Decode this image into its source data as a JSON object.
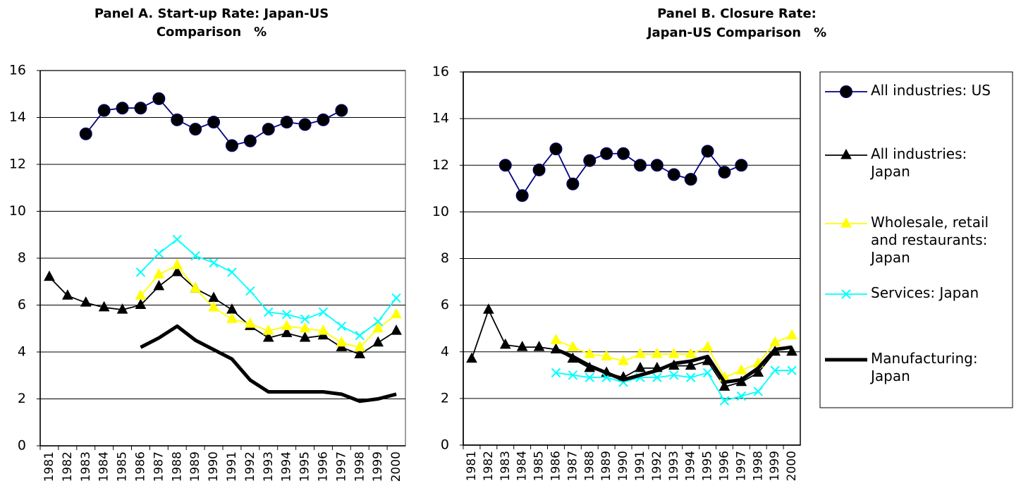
{
  "chart_data": [
    {
      "type": "line",
      "title": [
        "Panel A. Start-up Rate: Japan-US",
        "Comparison　%"
      ],
      "categories": [
        "1981",
        "1982",
        "1983",
        "1984",
        "1985",
        "1986",
        "1987",
        "1988",
        "1989",
        "1990",
        "1991",
        "1992",
        "1993",
        "1994",
        "1995",
        "1996",
        "1997",
        "1998",
        "1999",
        "2000"
      ],
      "ylim": [
        0,
        16
      ],
      "yticks": [
        0,
        2,
        4,
        6,
        8,
        10,
        12,
        14,
        16
      ],
      "grid": true,
      "series": [
        {
          "color": "#000080",
          "marker": "circle",
          "values": [
            null,
            null,
            13.3,
            14.3,
            14.4,
            14.4,
            14.8,
            13.9,
            13.5,
            13.8,
            12.8,
            13.0,
            13.5,
            13.8,
            13.7,
            13.9,
            14.3,
            null,
            null,
            null
          ]
        },
        {
          "color": "#000000",
          "marker": "triangle",
          "values": [
            7.2,
            6.4,
            6.1,
            5.9,
            5.8,
            6.0,
            6.8,
            7.4,
            6.7,
            6.3,
            5.8,
            5.1,
            4.6,
            4.8,
            4.6,
            4.7,
            4.2,
            3.9,
            4.4,
            4.9
          ]
        },
        {
          "color": "#ffff00",
          "marker": "triangle",
          "values": [
            null,
            null,
            null,
            null,
            null,
            6.4,
            7.3,
            7.7,
            6.7,
            5.9,
            5.4,
            5.2,
            4.9,
            5.1,
            5.0,
            4.9,
            4.4,
            4.2,
            5.0,
            5.6
          ]
        },
        {
          "color": "#00ffff",
          "marker": "x",
          "values": [
            null,
            null,
            null,
            null,
            null,
            7.4,
            8.2,
            8.8,
            8.1,
            7.8,
            7.4,
            6.6,
            5.7,
            5.6,
            5.4,
            5.7,
            5.1,
            4.7,
            5.3,
            6.3
          ]
        },
        {
          "color": "#000000",
          "marker": "none",
          "values": [
            null,
            null,
            null,
            null,
            null,
            4.2,
            4.6,
            5.1,
            4.5,
            4.1,
            3.7,
            2.8,
            2.3,
            2.3,
            2.3,
            2.3,
            2.2,
            1.9,
            2.0,
            2.2
          ]
        }
      ]
    },
    {
      "type": "line",
      "title": [
        "Panel B. Closure Rate:",
        "Japan-US Comparison　%"
      ],
      "categories": [
        "1981",
        "1982",
        "1983",
        "1984",
        "1985",
        "1986",
        "1987",
        "1988",
        "1989",
        "1990",
        "1991",
        "1992",
        "1993",
        "1994",
        "1995",
        "1996",
        "1997",
        "1998",
        "1999",
        "2000"
      ],
      "ylim": [
        0,
        16
      ],
      "yticks": [
        0,
        2,
        4,
        6,
        8,
        10,
        12,
        14,
        16
      ],
      "grid": true,
      "legend": "right",
      "series": [
        {
          "name": "All industries: US",
          "color": "#000080",
          "marker": "circle",
          "values": [
            null,
            null,
            12.0,
            10.7,
            11.8,
            12.7,
            11.2,
            12.2,
            12.5,
            12.5,
            12.0,
            12.0,
            11.6,
            11.4,
            12.6,
            11.7,
            12.0,
            null,
            null,
            null
          ]
        },
        {
          "name": "All industries: Japan",
          "color": "#000000",
          "marker": "triangle",
          "values": [
            3.7,
            5.8,
            4.3,
            4.2,
            4.2,
            4.1,
            3.7,
            3.3,
            3.1,
            2.9,
            3.3,
            3.3,
            3.4,
            3.4,
            3.6,
            2.5,
            2.7,
            3.1,
            4.0,
            4.0
          ]
        },
        {
          "name": "Wholesale, retail and restaurants: Japan",
          "color": "#ffff00",
          "marker": "triangle",
          "values": [
            null,
            null,
            null,
            null,
            null,
            4.5,
            4.2,
            3.9,
            3.8,
            3.6,
            3.9,
            3.9,
            3.9,
            3.9,
            4.2,
            2.9,
            3.2,
            3.5,
            4.4,
            4.7
          ]
        },
        {
          "name": "Services: Japan",
          "color": "#00ffff",
          "marker": "x",
          "values": [
            null,
            null,
            null,
            null,
            null,
            3.1,
            3.0,
            2.9,
            2.9,
            2.7,
            2.9,
            2.9,
            3.0,
            2.9,
            3.1,
            1.9,
            2.1,
            2.3,
            3.2,
            3.2
          ]
        },
        {
          "name": "Manufacturing: Japan",
          "color": "#000000",
          "marker": "none",
          "values": [
            null,
            null,
            null,
            null,
            null,
            4.1,
            3.8,
            3.4,
            3.1,
            2.8,
            3.0,
            3.2,
            3.5,
            3.6,
            3.8,
            2.7,
            2.8,
            3.3,
            4.1,
            4.2
          ]
        }
      ]
    }
  ]
}
